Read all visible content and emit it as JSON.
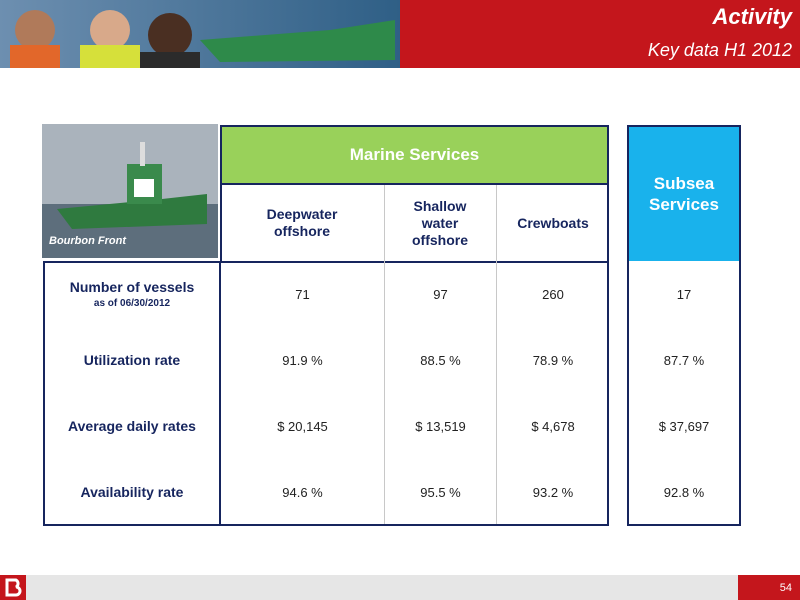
{
  "header": {
    "title": "Activity",
    "subtitle": "Key data H1 2012"
  },
  "photo": {
    "caption": "Bourbon Front"
  },
  "table": {
    "group_header": "Marine Services",
    "columns": [
      "Deepwater offshore",
      "Shallow water offshore",
      "Crewboats"
    ],
    "rows": [
      {
        "label": "Number of vessels",
        "sublabel": "as of 06/30/2012",
        "cells": [
          "71",
          "97",
          "260"
        ]
      },
      {
        "label": "Utilization rate",
        "cells": [
          "91.9 %",
          "88.5 %",
          "78.9 %"
        ]
      },
      {
        "label": "Average daily rates",
        "cells": [
          "$ 20,145",
          "$ 13,519",
          "$ 4,678"
        ]
      },
      {
        "label": "Availability rate",
        "cells": [
          "94.6 %",
          "95.5 %",
          "93.2 %"
        ]
      }
    ]
  },
  "subsea": {
    "header": "Subsea Services",
    "cells": [
      "17",
      "87.7 %",
      "$ 37,697",
      "92.8 %"
    ]
  },
  "footer": {
    "page": "54"
  }
}
